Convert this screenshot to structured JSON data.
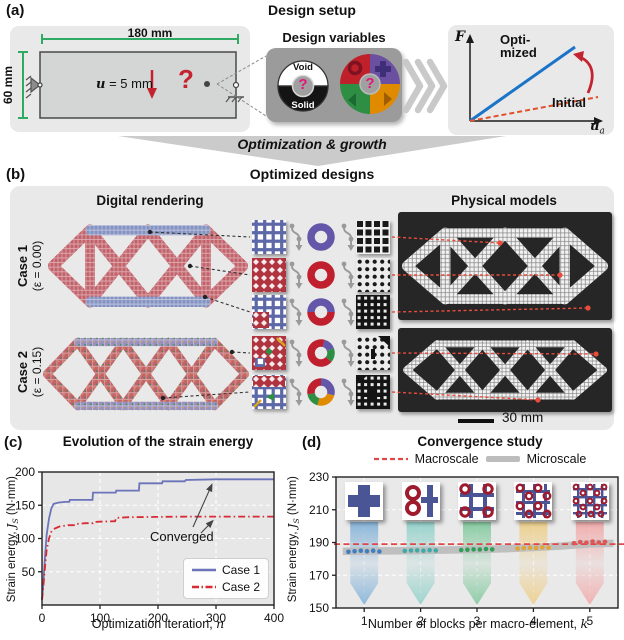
{
  "panel_a": {
    "tag": "(a)",
    "title": "Design setup",
    "width_dim": "180 mm",
    "height_dim": "60 mm",
    "disp_var": "u",
    "disp_rest": " = 5 mm",
    "question_mark": "?",
    "design_variables_title": "Design variables",
    "void_label": "Void",
    "solid_label": "Solid",
    "void_solid_question": "?",
    "blocks_question": "?",
    "fplot": {
      "force_label": "F",
      "disp_label": "u",
      "disp_sub": "a",
      "optimized_line1": "Opti-",
      "optimized_line2": "mized",
      "initial_label": "Initial"
    }
  },
  "transition": {
    "label": "Optimization & growth"
  },
  "panel_b": {
    "tag": "(b)",
    "title": "Optimized designs",
    "digital_header": "Digital rendering",
    "physical_header": "Physical models",
    "cases": [
      {
        "name": "Case 1",
        "eps": "(ε = 0.00)"
      },
      {
        "name": "Case 2",
        "eps": "(ε = 0.15)"
      }
    ],
    "scale_label": "30 mm"
  },
  "panel_c": {
    "tag": "(c)",
    "annotation": "Converged"
  },
  "panel_d": {
    "tag": "(d)"
  },
  "chart_data": [
    {
      "id": "evolution-of-strain-energy",
      "type": "line",
      "title": "Evolution of the strain energy",
      "xlabel": "Optimization iteration, n",
      "xlabel_pre": "Optimization iteration, ",
      "xlabel_var": "n",
      "ylabel": "Strain energy, JS (N·mm)",
      "ylabel_pre": "Strain energy, ",
      "ylabel_var": "J",
      "ylabel_sub": "S",
      "ylabel_post": " (N·mm)",
      "xlim": [
        0,
        400
      ],
      "ylim": [
        0,
        200
      ],
      "xticks": [
        0,
        100,
        200,
        300,
        400
      ],
      "yticks": [
        50,
        100,
        150,
        200
      ],
      "grid": true,
      "legend_position": "lower right",
      "annotation": "Converged",
      "series": [
        {
          "name": "Case 1",
          "color": "#6b74b8",
          "style": "solid",
          "x": [
            0,
            2,
            5,
            8,
            12,
            16,
            20,
            28,
            40,
            47,
            48,
            60,
            87,
            88,
            100,
            127,
            128,
            167,
            168,
            207,
            208,
            246,
            248,
            300,
            350,
            400
          ],
          "y": [
            8,
            30,
            70,
            105,
            130,
            145,
            152,
            154,
            155,
            155,
            158,
            158,
            158,
            169,
            169,
            169,
            172,
            172,
            183,
            183,
            186,
            186,
            188,
            189,
            189,
            189
          ]
        },
        {
          "name": "Case 2",
          "color": "#d62b33",
          "style": "dashdot",
          "x": [
            0,
            2,
            5,
            8,
            12,
            16,
            22,
            30,
            45,
            58,
            60,
            75,
            88,
            90,
            108,
            126,
            128,
            150,
            200,
            250,
            300,
            400
          ],
          "y": [
            8,
            25,
            55,
            82,
            100,
            110,
            115,
            118,
            120,
            120,
            122,
            123,
            123,
            125,
            125.5,
            126,
            131,
            132,
            132.5,
            133,
            133,
            133
          ]
        }
      ]
    },
    {
      "id": "convergence-study",
      "type": "scatter",
      "title": "Convergence study",
      "xlabel": "Number of blocks per macro-element, k",
      "xlabel_pre": "Number of blocks per macro-element, ",
      "xlabel_var": "k",
      "ylabel": "Strain energy, JS (N·mm)",
      "ylabel_pre": "Strain energy, ",
      "ylabel_var": "J",
      "ylabel_sub": "S",
      "ylabel_post": " (N·mm)",
      "xlim": [
        0.5,
        5.5
      ],
      "ylim": [
        150,
        230
      ],
      "xticks": [
        1,
        2,
        3,
        4,
        5
      ],
      "yticks": [
        150,
        170,
        190,
        210,
        230
      ],
      "legend": [
        {
          "name": "Macroscale",
          "color": "#e04848",
          "style": "dashed"
        },
        {
          "name": "Microscale",
          "color": "#bdbdbd",
          "style": "band"
        }
      ],
      "macroscale_value": 189,
      "microscale_band": {
        "k": [
          0.62,
          1,
          1.5,
          2,
          2.5,
          3,
          3.5,
          4,
          4.5,
          5,
          5.42
        ],
        "center": [
          184.6,
          184.8,
          184.9,
          185.1,
          185.4,
          185.7,
          186.2,
          186.9,
          187.9,
          189.2,
          189.5
        ],
        "halfwidth": 2.3
      },
      "dot_offsets": [
        -0.28,
        -0.17,
        -0.06,
        0.05,
        0.16,
        0.27
      ],
      "groups": [
        {
          "k": 1,
          "color": "#3f7fc0",
          "arrow_color": "#7fb0d8",
          "values": [
            184.3,
            184.6,
            185.0,
            184.6,
            185.0,
            184.5
          ]
        },
        {
          "k": 2,
          "color": "#3fa9a5",
          "arrow_color": "#8fd0c9",
          "values": [
            184.9,
            185.1,
            185.2,
            185.0,
            185.3,
            185.1
          ]
        },
        {
          "k": 3,
          "color": "#2f9e57",
          "arrow_color": "#7cc89a",
          "values": [
            185.4,
            185.6,
            185.8,
            185.7,
            186.0,
            185.8
          ]
        },
        {
          "k": 4,
          "color": "#e0a437",
          "arrow_color": "#edcd84",
          "values": [
            186.3,
            186.6,
            186.8,
            186.7,
            187.0,
            186.8
          ]
        },
        {
          "k": 5,
          "color": "#e05555",
          "arrow_color": "#f2a7a7",
          "values": [
            189.6,
            190.3,
            189.9,
            190.6,
            190.0,
            190.4
          ]
        }
      ]
    }
  ]
}
